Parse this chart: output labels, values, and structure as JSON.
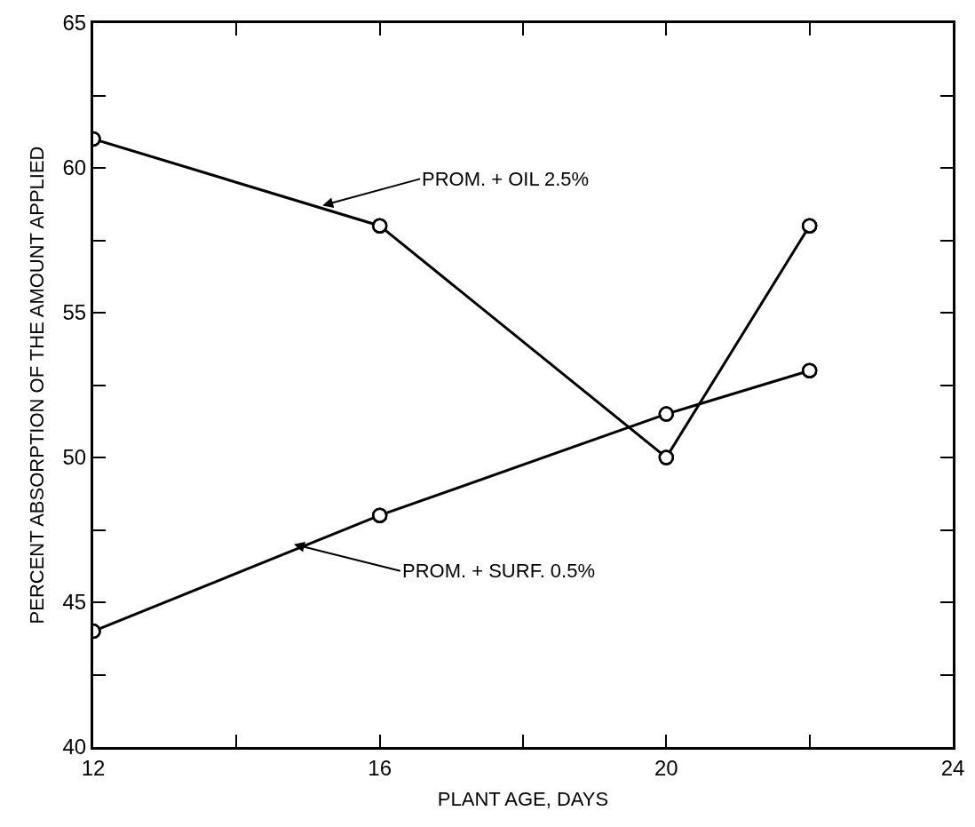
{
  "chart_data": {
    "type": "line",
    "xlabel": "PLANT AGE, DAYS",
    "ylabel": "PERCENT ABSORPTION OF THE AMOUNT APPLIED",
    "x": [
      12,
      16,
      20,
      22
    ],
    "series": [
      {
        "color": "#000000",
        "values": [
          61,
          58,
          50,
          58
        ]
      },
      {
        "color": "#000000",
        "values": [
          44,
          48,
          51.5,
          53
        ]
      }
    ],
    "annotations": [
      {
        "text": "PROM. + OIL 2.5%",
        "x": 15.2,
        "y": 58.7
      },
      {
        "text": "PROM. + SURF. 0.5%",
        "x": 14.8,
        "y": 47
      }
    ],
    "xlim": [
      12,
      24
    ],
    "ylim": [
      40,
      65
    ],
    "xticks": [
      12,
      {
        "value": 14,
        "label": null
      },
      16,
      {
        "value": 18,
        "label": null
      },
      20,
      {
        "value": 22,
        "label": null
      },
      24
    ],
    "yticks": [
      40,
      {
        "value": 42.5,
        "label": null
      },
      45,
      {
        "value": 47.5,
        "label": null
      },
      50,
      {
        "value": 52.5,
        "label": null
      },
      55,
      {
        "value": 57.5,
        "label": null
      },
      60,
      {
        "value": 62.5,
        "label": null
      },
      65
    ],
    "marker": "circle",
    "line_style": "solid"
  }
}
